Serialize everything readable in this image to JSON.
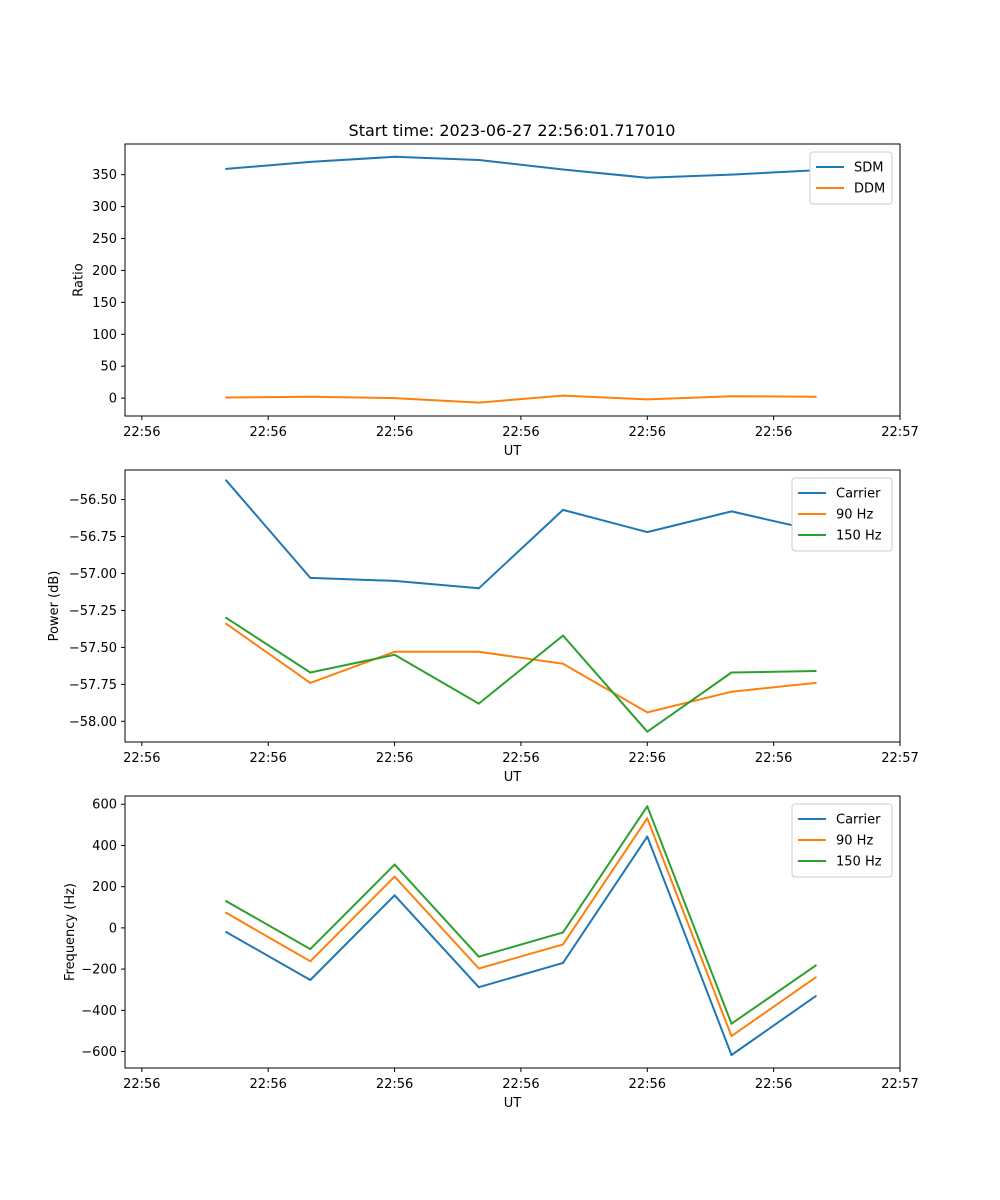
{
  "figure": {
    "title": "Start time: 2023-06-27 22:56:01.717010"
  },
  "chart_data": [
    {
      "type": "line",
      "title": "Start time: 2023-06-27 22:56:01.717010",
      "xlabel": "UT",
      "ylabel": "Ratio",
      "x": [
        1.5,
        2.5,
        3.5,
        4.5,
        5.5,
        6.5,
        7.5,
        8.5
      ],
      "xlim": [
        0.3,
        9.5
      ],
      "x_ticks": [
        0.5,
        2.0,
        3.5,
        5.0,
        6.5,
        8.0,
        9.5
      ],
      "x_tick_labels": [
        "22:56",
        "22:56",
        "22:56",
        "22:56",
        "22:56",
        "22:56",
        "22:57"
      ],
      "ylim": [
        -28,
        398
      ],
      "y_ticks": [
        0,
        50,
        100,
        150,
        200,
        250,
        300,
        350
      ],
      "y_tick_labels": [
        "0",
        "50",
        "100",
        "150",
        "200",
        "250",
        "300",
        "350"
      ],
      "legend_position": "top-right",
      "series": [
        {
          "name": "SDM",
          "color": "#1f77b4",
          "values": [
            359,
            370,
            378,
            373,
            358,
            345,
            350,
            357
          ]
        },
        {
          "name": "DDM",
          "color": "#ff7f0e",
          "values": [
            1,
            2,
            0,
            -7,
            4,
            -2,
            3,
            2
          ]
        }
      ]
    },
    {
      "type": "line",
      "xlabel": "UT",
      "ylabel": "Power (dB)",
      "x": [
        1.5,
        2.5,
        3.5,
        4.5,
        5.5,
        6.5,
        7.5,
        8.5
      ],
      "xlim": [
        0.3,
        9.5
      ],
      "x_ticks": [
        0.5,
        2.0,
        3.5,
        5.0,
        6.5,
        8.0,
        9.5
      ],
      "x_tick_labels": [
        "22:56",
        "22:56",
        "22:56",
        "22:56",
        "22:56",
        "22:56",
        "22:57"
      ],
      "ylim": [
        -58.14,
        -56.3
      ],
      "y_ticks": [
        -58.0,
        -57.75,
        -57.5,
        -57.25,
        -57.0,
        -56.75,
        -56.5
      ],
      "y_tick_labels": [
        "−58.00",
        "−57.75",
        "−57.50",
        "−57.25",
        "−57.00",
        "−56.75",
        "−56.50"
      ],
      "legend_position": "top-right",
      "series": [
        {
          "name": "Carrier",
          "color": "#1f77b4",
          "values": [
            -56.37,
            -57.03,
            -57.05,
            -57.1,
            -56.57,
            -56.72,
            -56.58,
            -56.71
          ]
        },
        {
          "name": "90 Hz",
          "color": "#ff7f0e",
          "values": [
            -57.34,
            -57.74,
            -57.53,
            -57.53,
            -57.61,
            -57.94,
            -57.8,
            -57.74
          ]
        },
        {
          "name": "150 Hz",
          "color": "#2ca02c",
          "values": [
            -57.3,
            -57.67,
            -57.55,
            -57.88,
            -57.42,
            -58.07,
            -57.67,
            -57.66
          ]
        }
      ]
    },
    {
      "type": "line",
      "xlabel": "UT",
      "ylabel": "Frequency (Hz)",
      "x": [
        1.5,
        2.5,
        3.5,
        4.5,
        5.5,
        6.5,
        7.5,
        8.5
      ],
      "xlim": [
        0.3,
        9.5
      ],
      "x_ticks": [
        0.5,
        2.0,
        3.5,
        5.0,
        6.5,
        8.0,
        9.5
      ],
      "x_tick_labels": [
        "22:56",
        "22:56",
        "22:56",
        "22:56",
        "22:56",
        "22:56",
        "22:57"
      ],
      "ylim": [
        -680,
        640
      ],
      "y_ticks": [
        -600,
        -400,
        -200,
        0,
        200,
        400,
        600
      ],
      "y_tick_labels": [
        "−600",
        "−400",
        "−200",
        "0",
        "200",
        "400",
        "600"
      ],
      "legend_position": "top-right",
      "series": [
        {
          "name": "Carrier",
          "color": "#1f77b4",
          "values": [
            -20,
            -253,
            158,
            -288,
            -170,
            443,
            -617,
            -331
          ]
        },
        {
          "name": "90 Hz",
          "color": "#ff7f0e",
          "values": [
            73,
            -162,
            249,
            -197,
            -80,
            532,
            -525,
            -240
          ]
        },
        {
          "name": "150 Hz",
          "color": "#2ca02c",
          "values": [
            130,
            -103,
            307,
            -140,
            -22,
            590,
            -465,
            -182
          ]
        }
      ]
    }
  ]
}
